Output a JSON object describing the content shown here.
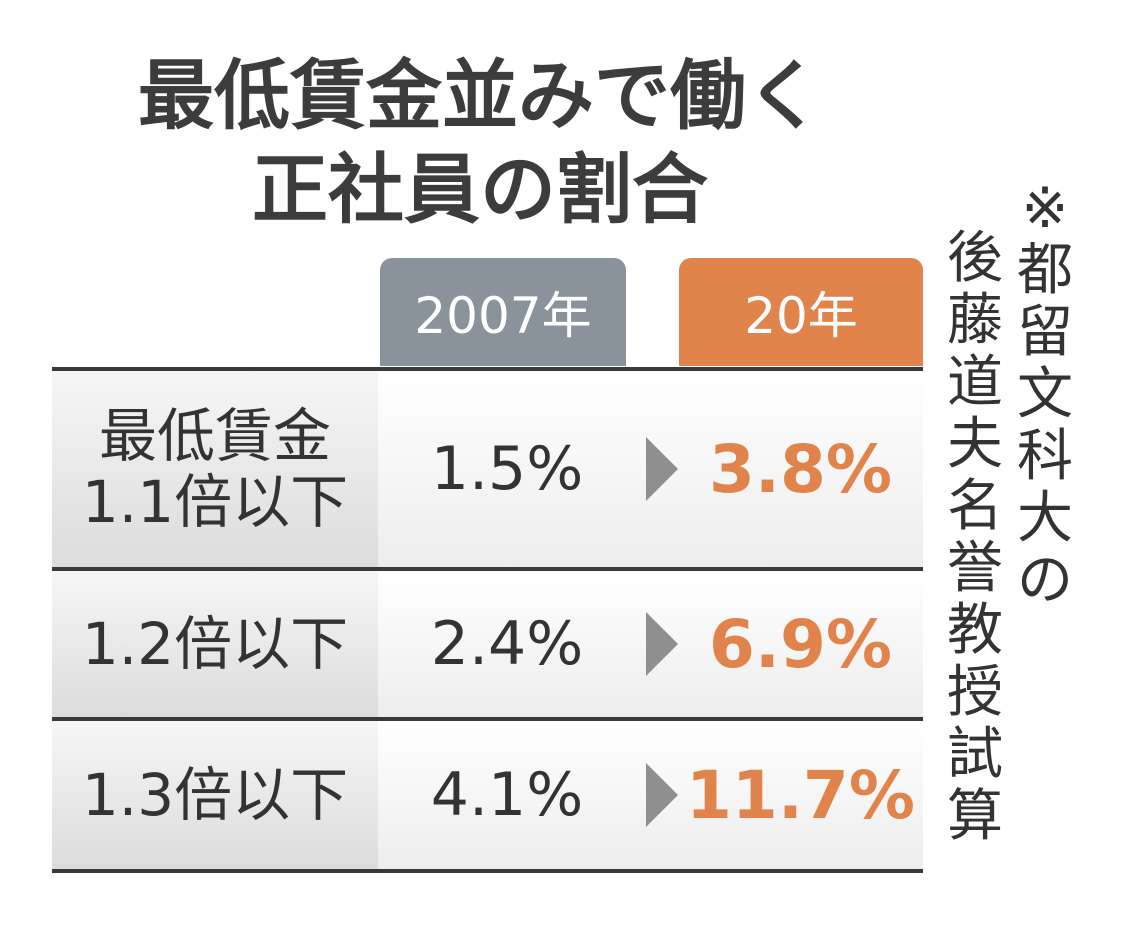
{
  "title": {
    "line1": "最低賃金並みで働く",
    "line2": "正社員の割合"
  },
  "note": {
    "line1": "※都留文科大の",
    "line2": "後藤道夫名誉教授試算"
  },
  "colors": {
    "y2007": "#8a939c",
    "y20": "#e0844c",
    "text": "#333333",
    "rule": "#3a3a3a"
  },
  "chart_data": {
    "type": "table",
    "title": "最低賃金並みで働く正社員の割合",
    "columns": [
      "2007年",
      "20年"
    ],
    "rows": [
      {
        "label_lines": [
          "最低賃金",
          "1.1倍以下"
        ],
        "y2007": "1.5%",
        "y20": "3.8%"
      },
      {
        "label_lines": [
          "1.2倍以下"
        ],
        "y2007": "2.4%",
        "y20": "6.9%"
      },
      {
        "label_lines": [
          "1.3倍以下"
        ],
        "y2007": "4.1%",
        "y20": "11.7%"
      }
    ]
  }
}
